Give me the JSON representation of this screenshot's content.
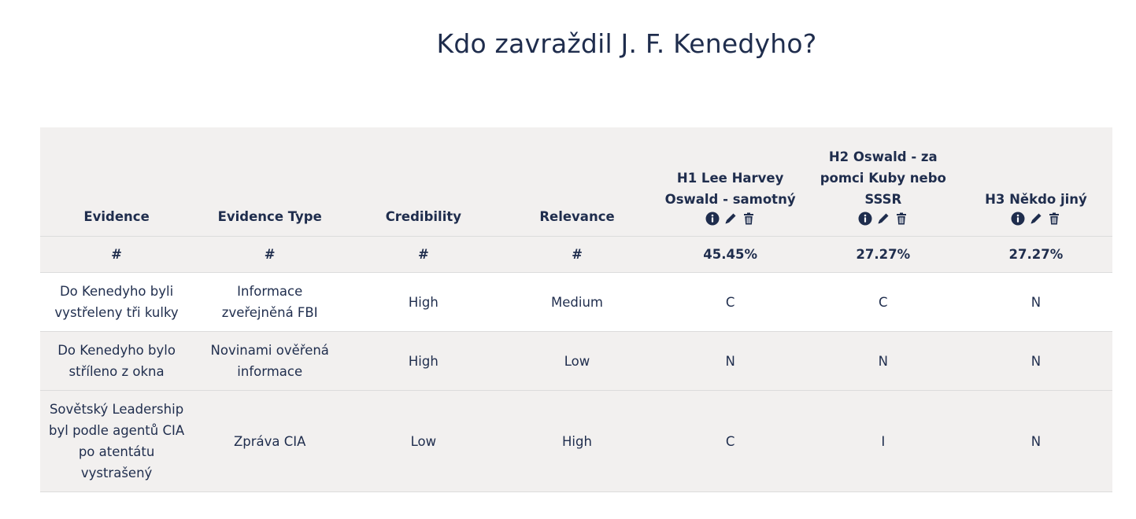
{
  "page": {
    "title": "Kdo zavraždil J. F. Kenedyho?"
  },
  "table": {
    "headers": {
      "evidence": "Evidence",
      "evidence_type": "Evidence Type",
      "credibility": "Credibility",
      "relevance": "Relevance"
    },
    "hypotheses": [
      {
        "label": "H1  Lee Harvey Oswald - samotný",
        "score": "45.45%"
      },
      {
        "label": "H2 Oswald - za pomci Kuby nebo SSSR",
        "score": "27.27%"
      },
      {
        "label": "H3 Někdo jiný",
        "score": "27.27%"
      }
    ],
    "hypothesis_icons": [
      "info-icon",
      "pencil-icon",
      "trash-icon"
    ],
    "score_row": {
      "evidence": "#",
      "evidence_type": "#",
      "credibility": "#",
      "relevance": "#"
    },
    "rows": [
      {
        "evidence": "Do Kenedyho byli vystřeleny tři kulky",
        "evidence_type": "Informace zveřejněná FBI",
        "credibility": "High",
        "relevance": "Medium",
        "h": [
          "C",
          "C",
          "N"
        ]
      },
      {
        "evidence": "Do Kenedyho bylo stříleno z okna",
        "evidence_type": "Novinami ověřená informace",
        "credibility": "High",
        "relevance": "Low",
        "h": [
          "N",
          "N",
          "N"
        ]
      },
      {
        "evidence": "Sovětský Leadership byl podle agentů CIA po atentátu vystrašený",
        "evidence_type": "Zpráva CIA",
        "credibility": "Low",
        "relevance": "High",
        "h": [
          "C",
          "I",
          "N"
        ]
      }
    ]
  },
  "colors": {
    "text": "#1f2d4d",
    "header_bg": "#f2f0ef",
    "row_alt_bg": "#f2f0ef",
    "border": "#dcdcdc"
  }
}
